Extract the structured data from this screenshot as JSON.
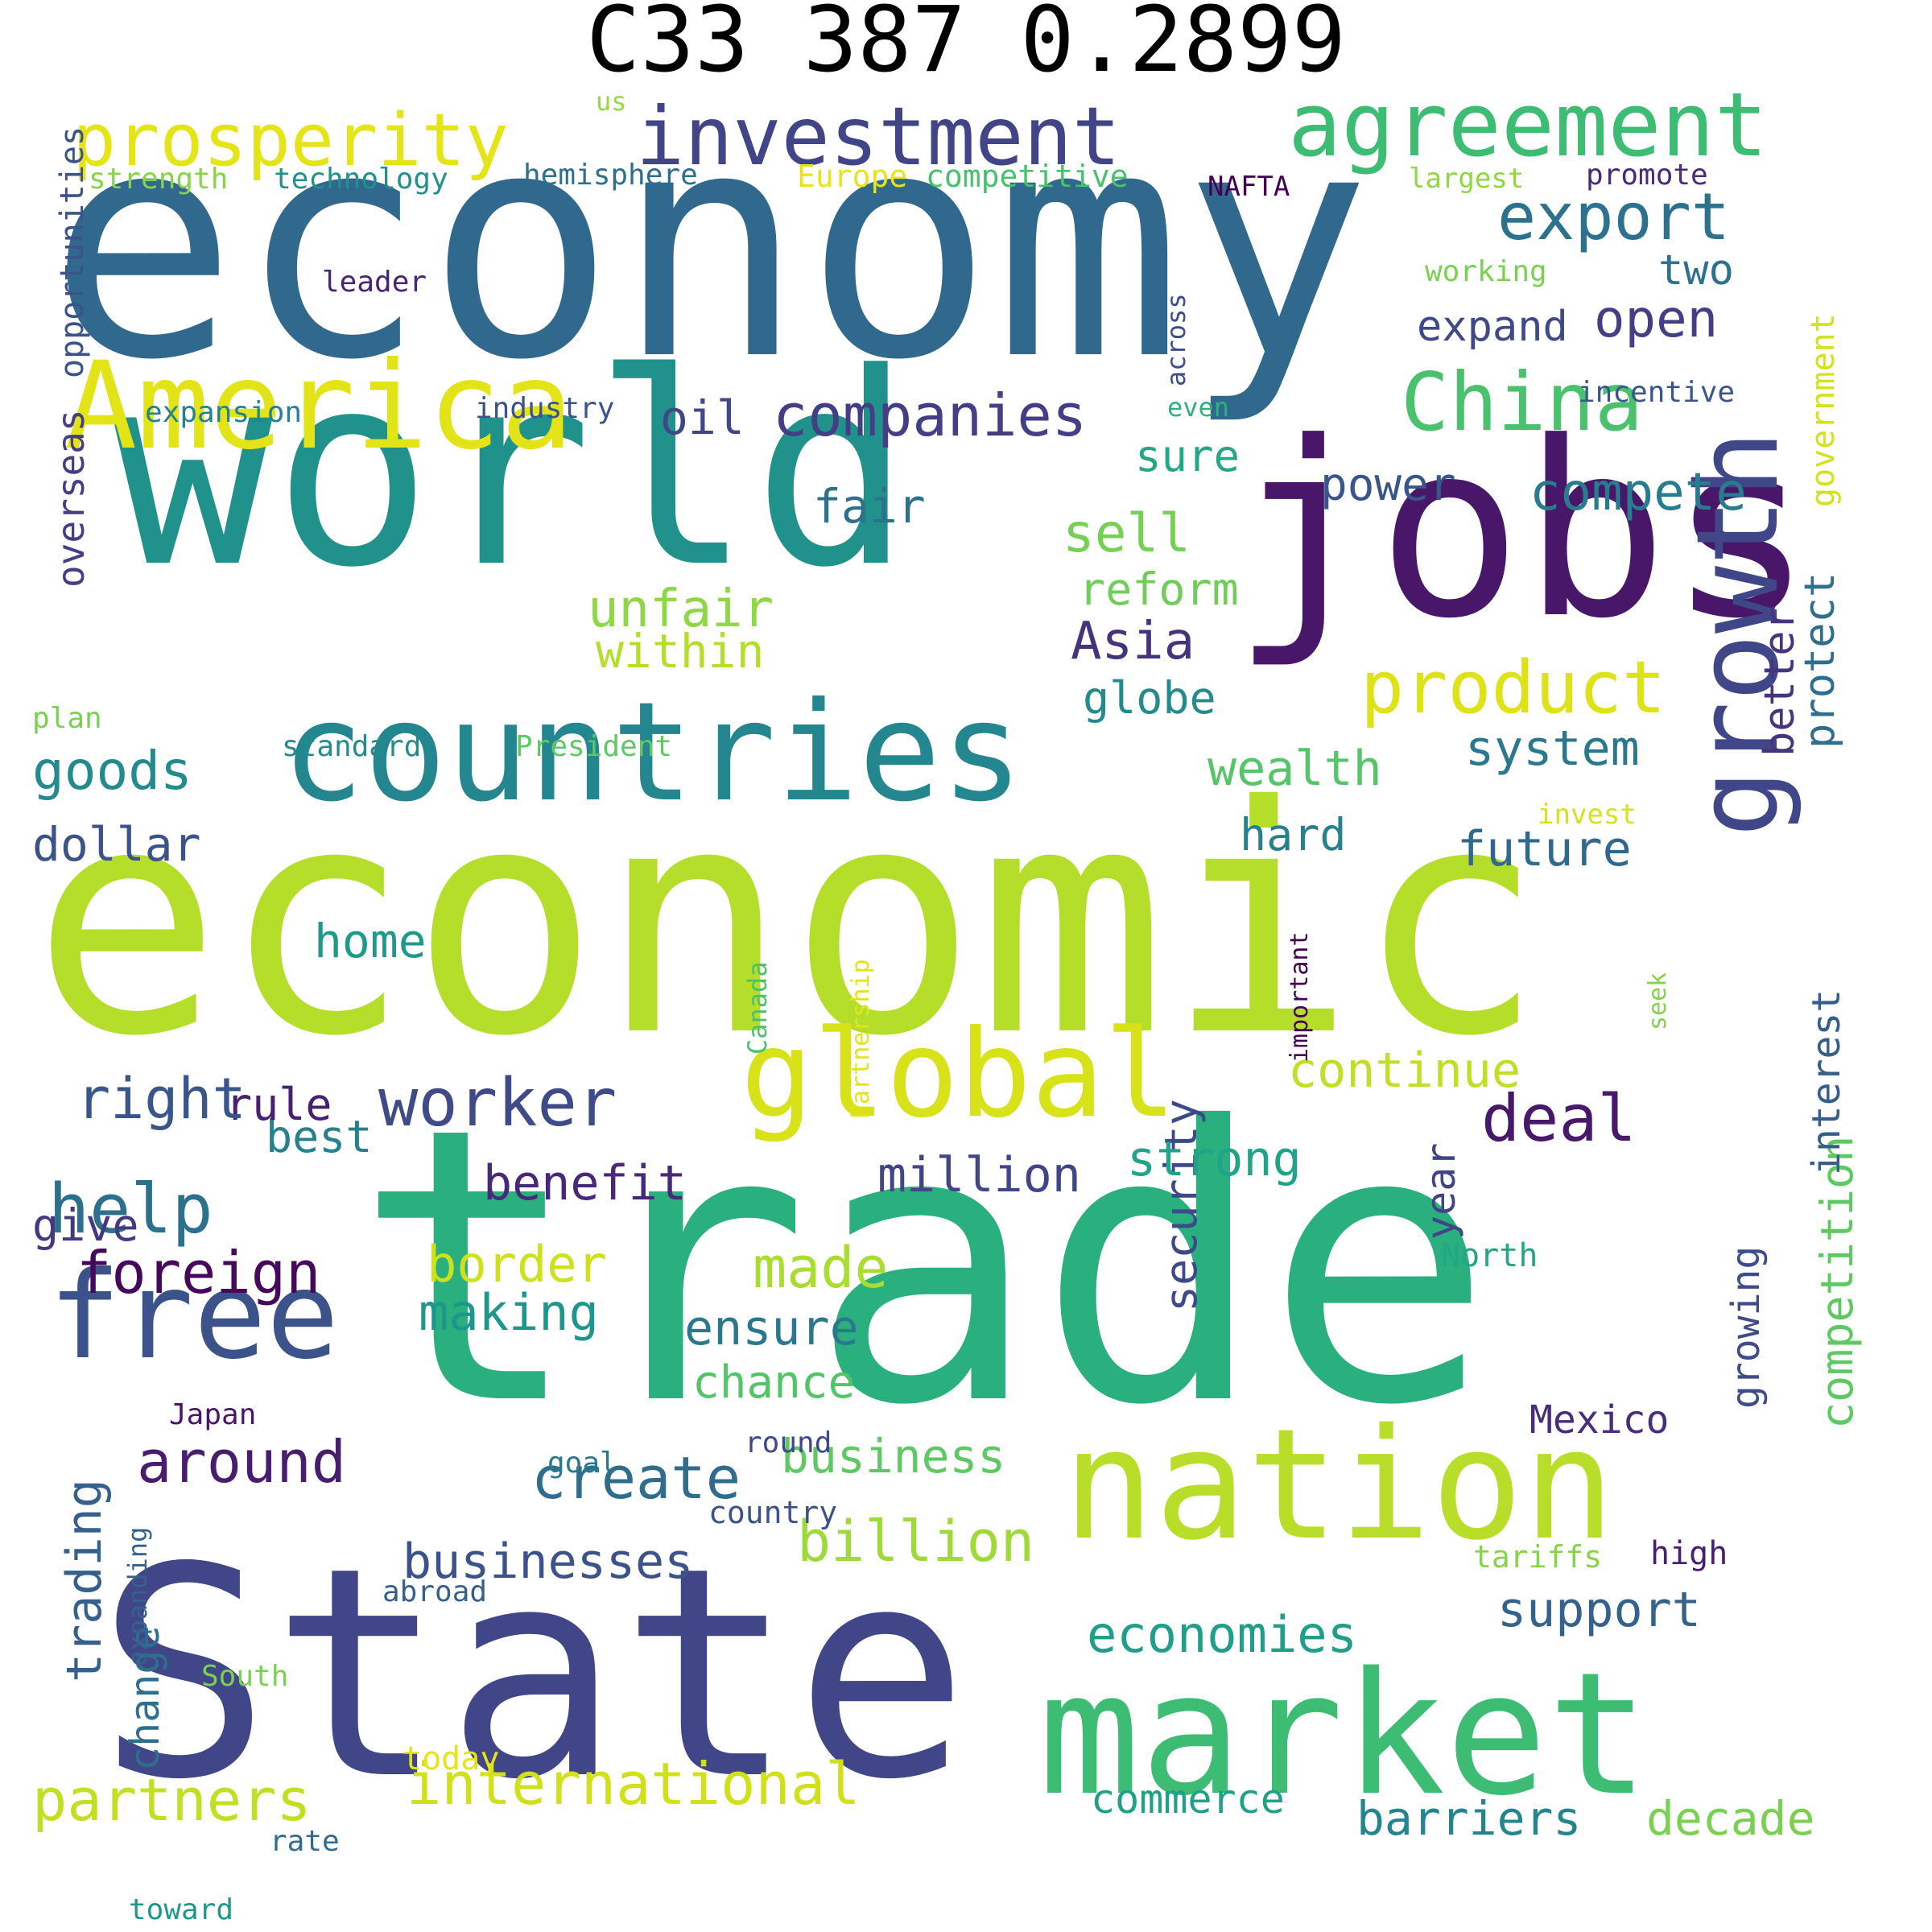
{
  "title": "C33 387 0.2899",
  "palette": "viridis",
  "words": [
    {
      "text": "economy",
      "color": "#31688e"
    },
    {
      "text": "world",
      "color": "#21918c"
    },
    {
      "text": "economic",
      "color": "#b5de2b"
    },
    {
      "text": "trade",
      "color": "#2ab07f"
    },
    {
      "text": "State",
      "color": "#404688"
    },
    {
      "text": "jobs",
      "color": "#481769"
    },
    {
      "text": "countries",
      "color": "#24868e"
    },
    {
      "text": "America",
      "color": "#e2e418"
    },
    {
      "text": "nation",
      "color": "#b8de29"
    },
    {
      "text": "market",
      "color": "#3dbc74"
    },
    {
      "text": "global",
      "color": "#d8e219"
    },
    {
      "text": "growth",
      "color": "#3f4788"
    },
    {
      "text": "free",
      "color": "#3b528b"
    },
    {
      "text": "agreement",
      "color": "#3dbc74"
    },
    {
      "text": "investment",
      "color": "#414487"
    },
    {
      "text": "prosperity",
      "color": "#e5e419"
    },
    {
      "text": "China",
      "color": "#4ac16d"
    },
    {
      "text": "export",
      "color": "#2c718e"
    },
    {
      "text": "product",
      "color": "#dde318"
    },
    {
      "text": "companies",
      "color": "#433e85"
    },
    {
      "text": "worker",
      "color": "#3e4a89"
    },
    {
      "text": "foreign",
      "color": "#46085c"
    },
    {
      "text": "deal",
      "color": "#48186a"
    },
    {
      "text": "help",
      "color": "#2d708e"
    },
    {
      "text": "around",
      "color": "#481c6e"
    },
    {
      "text": "create",
      "color": "#2f6c8e"
    },
    {
      "text": "international",
      "color": "#d0e11c"
    },
    {
      "text": "partners",
      "color": "#c2df23"
    },
    {
      "text": "businesses",
      "color": "#3b528b"
    },
    {
      "text": "billion",
      "color": "#9fda3a"
    },
    {
      "text": "economies",
      "color": "#1f9e89"
    },
    {
      "text": "support",
      "color": "#33638d"
    },
    {
      "text": "barriers",
      "color": "#25858e"
    },
    {
      "text": "decade",
      "color": "#7ad151"
    },
    {
      "text": "commerce",
      "color": "#1fa187"
    },
    {
      "text": "competition",
      "color": "#5ec962"
    },
    {
      "text": "business",
      "color": "#5ec962"
    },
    {
      "text": "security",
      "color": "#3e4989"
    },
    {
      "text": "made",
      "color": "#aadc32"
    },
    {
      "text": "making",
      "color": "#1f968b"
    },
    {
      "text": "border",
      "color": "#cde11d"
    },
    {
      "text": "ensure",
      "color": "#2a788e"
    },
    {
      "text": "chance",
      "color": "#52c569"
    },
    {
      "text": "million",
      "color": "#414487"
    },
    {
      "text": "strong",
      "color": "#20a386"
    },
    {
      "text": "benefit",
      "color": "#482878"
    },
    {
      "text": "best",
      "color": "#26818e"
    },
    {
      "text": "rule",
      "color": "#482071"
    },
    {
      "text": "right",
      "color": "#39568c"
    },
    {
      "text": "give",
      "color": "#453781"
    },
    {
      "text": "continue",
      "color": "#c0df25"
    },
    {
      "text": "year",
      "color": "#414487"
    },
    {
      "text": "growing",
      "color": "#3e4c8a"
    },
    {
      "text": "trading",
      "color": "#355f8d"
    },
    {
      "text": "change",
      "color": "#2e6e8e"
    },
    {
      "text": "goods",
      "color": "#238a8d"
    },
    {
      "text": "dollar",
      "color": "#3b528b"
    },
    {
      "text": "home",
      "color": "#1f9a8a"
    },
    {
      "text": "unfair",
      "color": "#8fd744"
    },
    {
      "text": "within",
      "color": "#b5de2b"
    },
    {
      "text": "Asia",
      "color": "#46337e"
    },
    {
      "text": "globe",
      "color": "#228b8d"
    },
    {
      "text": "reform",
      "color": "#6ece58"
    },
    {
      "text": "sell",
      "color": "#75d054"
    },
    {
      "text": "wealth",
      "color": "#54c568"
    },
    {
      "text": "hard",
      "color": "#27808e"
    },
    {
      "text": "system",
      "color": "#2a788e"
    },
    {
      "text": "future",
      "color": "#31688e"
    },
    {
      "text": "better",
      "color": "#453581"
    },
    {
      "text": "protect",
      "color": "#2e6f8e"
    },
    {
      "text": "interest",
      "color": "#355e8d"
    },
    {
      "text": "government",
      "color": "#d2e21b"
    },
    {
      "text": "compete",
      "color": "#297b8e"
    },
    {
      "text": "power",
      "color": "#39568c"
    },
    {
      "text": "sure",
      "color": "#22a884"
    },
    {
      "text": "oil",
      "color": "#404688"
    },
    {
      "text": "fair",
      "color": "#2c728e"
    },
    {
      "text": "open",
      "color": "#433e85"
    },
    {
      "text": "expand",
      "color": "#3f4889"
    },
    {
      "text": "two",
      "color": "#2d718e"
    },
    {
      "text": "Mexico",
      "color": "#472d7b"
    },
    {
      "text": "overseas",
      "color": "#433e85"
    },
    {
      "text": "opportunities",
      "color": "#3b528b"
    },
    {
      "text": "strength",
      "color": "#86d549"
    },
    {
      "text": "technology",
      "color": "#21918c"
    },
    {
      "text": "hemisphere",
      "color": "#2d708e"
    },
    {
      "text": "Europe",
      "color": "#e7e419"
    },
    {
      "text": "competitive",
      "color": "#48c16e"
    },
    {
      "text": "NAFTA",
      "color": "#440154"
    },
    {
      "text": "largest",
      "color": "#8fd744"
    },
    {
      "text": "promote",
      "color": "#472c7a"
    },
    {
      "text": "us",
      "color": "#95d840"
    },
    {
      "text": "leader",
      "color": "#482475"
    },
    {
      "text": "working",
      "color": "#7ad151"
    },
    {
      "text": "across",
      "color": "#3e4c8a"
    },
    {
      "text": "even",
      "color": "#2db27d"
    },
    {
      "text": "incentive",
      "color": "#3a548c"
    },
    {
      "text": "expansion",
      "color": "#26828e"
    },
    {
      "text": "industry",
      "color": "#3b528b"
    },
    {
      "text": "plan",
      "color": "#7ad151"
    },
    {
      "text": "standard",
      "color": "#228c8d"
    },
    {
      "text": "President",
      "color": "#5ec962"
    },
    {
      "text": "invest",
      "color": "#d8e219"
    },
    {
      "text": "Partnership",
      "color": "#e2e418"
    },
    {
      "text": "Canada",
      "color": "#4ac16d"
    },
    {
      "text": "important",
      "color": "#440154"
    },
    {
      "text": "seek",
      "color": "#84d44b"
    },
    {
      "text": "North",
      "color": "#22a785"
    },
    {
      "text": "Japan",
      "color": "#481769"
    },
    {
      "text": "round",
      "color": "#3f4889"
    },
    {
      "text": "goal",
      "color": "#2a788e"
    },
    {
      "text": "country",
      "color": "#3b528b"
    },
    {
      "text": "tariffs",
      "color": "#86d549"
    },
    {
      "text": "high",
      "color": "#481f70"
    },
    {
      "text": "abroad",
      "color": "#355f8d"
    },
    {
      "text": "expanding",
      "color": "#33638d"
    },
    {
      "text": "South",
      "color": "#7ad151"
    },
    {
      "text": "today",
      "color": "#e5e419"
    },
    {
      "text": "rate",
      "color": "#2f6c8e"
    },
    {
      "text": "toward",
      "color": "#1f988b"
    }
  ]
}
